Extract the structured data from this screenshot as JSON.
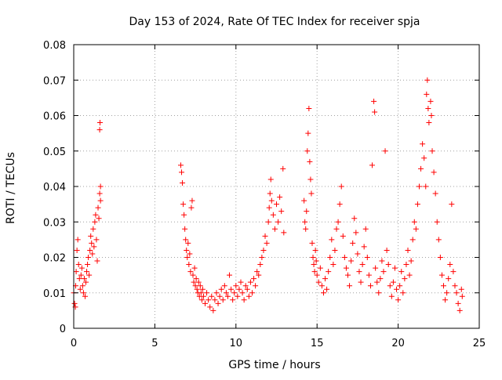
{
  "chart_data": {
    "type": "scatter",
    "title": "Day 153 of 2024, Rate Of TEC Index for receiver spja",
    "xlabel": "GPS time / hours",
    "ylabel": "ROTI / TECUs",
    "xlim": [
      0,
      25
    ],
    "ylim": [
      0,
      0.08
    ],
    "grid": true,
    "marker": "+",
    "color": "#ff0000",
    "x_ticks": [
      {
        "value": 0,
        "label": "0"
      },
      {
        "value": 5,
        "label": "5"
      },
      {
        "value": 10,
        "label": "10"
      },
      {
        "value": 15,
        "label": "15"
      },
      {
        "value": 20,
        "label": "20"
      },
      {
        "value": 25,
        "label": "25"
      }
    ],
    "y_ticks": [
      {
        "value": 0,
        "label": "0"
      },
      {
        "value": 0.01,
        "label": "0.01"
      },
      {
        "value": 0.02,
        "label": "0.02"
      },
      {
        "value": 0.03,
        "label": "0.03"
      },
      {
        "value": 0.04,
        "label": "0.04"
      },
      {
        "value": 0.05,
        "label": "0.05"
      },
      {
        "value": 0.06,
        "label": "0.06"
      },
      {
        "value": 0.07,
        "label": "0.07"
      },
      {
        "value": 0.08,
        "label": "0.08"
      }
    ],
    "series": [
      {
        "name": "ROTI",
        "points": [
          [
            0.0,
            0.01
          ],
          [
            0.05,
            0.007
          ],
          [
            0.1,
            0.006
          ],
          [
            0.12,
            0.012
          ],
          [
            0.15,
            0.016
          ],
          [
            0.2,
            0.022
          ],
          [
            0.25,
            0.025
          ],
          [
            0.3,
            0.018
          ],
          [
            0.35,
            0.014
          ],
          [
            0.4,
            0.011
          ],
          [
            0.45,
            0.015
          ],
          [
            0.5,
            0.017
          ],
          [
            0.55,
            0.012
          ],
          [
            0.6,
            0.01
          ],
          [
            0.65,
            0.014
          ],
          [
            0.7,
            0.009
          ],
          [
            0.75,
            0.013
          ],
          [
            0.8,
            0.016
          ],
          [
            0.85,
            0.018
          ],
          [
            0.9,
            0.02
          ],
          [
            0.95,
            0.015
          ],
          [
            1.0,
            0.022
          ],
          [
            1.05,
            0.026
          ],
          [
            1.1,
            0.024
          ],
          [
            1.15,
            0.021
          ],
          [
            1.2,
            0.028
          ],
          [
            1.25,
            0.023
          ],
          [
            1.3,
            0.03
          ],
          [
            1.35,
            0.032
          ],
          [
            1.4,
            0.025
          ],
          [
            1.45,
            0.019
          ],
          [
            1.5,
            0.034
          ],
          [
            1.55,
            0.031
          ],
          [
            1.6,
            0.038
          ],
          [
            1.6,
            0.056
          ],
          [
            1.62,
            0.058
          ],
          [
            1.65,
            0.04
          ],
          [
            1.65,
            0.036
          ],
          [
            6.6,
            0.046
          ],
          [
            6.65,
            0.044
          ],
          [
            6.7,
            0.041
          ],
          [
            6.75,
            0.035
          ],
          [
            6.8,
            0.032
          ],
          [
            6.85,
            0.028
          ],
          [
            6.9,
            0.025
          ],
          [
            6.95,
            0.022
          ],
          [
            7.0,
            0.02
          ],
          [
            7.05,
            0.024
          ],
          [
            7.1,
            0.018
          ],
          [
            7.15,
            0.021
          ],
          [
            7.2,
            0.016
          ],
          [
            7.25,
            0.034
          ],
          [
            7.3,
            0.036
          ],
          [
            7.35,
            0.015
          ],
          [
            7.4,
            0.013
          ],
          [
            7.45,
            0.017
          ],
          [
            7.5,
            0.012
          ],
          [
            7.55,
            0.014
          ],
          [
            7.6,
            0.011
          ],
          [
            7.65,
            0.01
          ],
          [
            7.7,
            0.013
          ],
          [
            7.75,
            0.009
          ],
          [
            7.8,
            0.012
          ],
          [
            7.85,
            0.01
          ],
          [
            7.9,
            0.008
          ],
          [
            7.95,
            0.011
          ],
          [
            8.0,
            0.009
          ],
          [
            8.1,
            0.007
          ],
          [
            8.2,
            0.01
          ],
          [
            8.3,
            0.008
          ],
          [
            8.4,
            0.006
          ],
          [
            8.5,
            0.009
          ],
          [
            8.6,
            0.005
          ],
          [
            8.7,
            0.008
          ],
          [
            8.8,
            0.01
          ],
          [
            8.9,
            0.007
          ],
          [
            9.0,
            0.009
          ],
          [
            9.1,
            0.011
          ],
          [
            9.2,
            0.008
          ],
          [
            9.3,
            0.012
          ],
          [
            9.4,
            0.01
          ],
          [
            9.5,
            0.009
          ],
          [
            9.6,
            0.015
          ],
          [
            9.7,
            0.011
          ],
          [
            9.8,
            0.008
          ],
          [
            9.9,
            0.01
          ],
          [
            10.0,
            0.012
          ],
          [
            10.1,
            0.009
          ],
          [
            10.2,
            0.011
          ],
          [
            10.3,
            0.013
          ],
          [
            10.4,
            0.01
          ],
          [
            10.5,
            0.008
          ],
          [
            10.6,
            0.012
          ],
          [
            10.7,
            0.011
          ],
          [
            10.8,
            0.009
          ],
          [
            10.9,
            0.013
          ],
          [
            11.0,
            0.01
          ],
          [
            11.1,
            0.014
          ],
          [
            11.2,
            0.012
          ],
          [
            11.3,
            0.016
          ],
          [
            11.4,
            0.015
          ],
          [
            11.5,
            0.018
          ],
          [
            11.6,
            0.02
          ],
          [
            11.7,
            0.022
          ],
          [
            11.8,
            0.026
          ],
          [
            11.9,
            0.024
          ],
          [
            12.0,
            0.03
          ],
          [
            12.05,
            0.034
          ],
          [
            12.1,
            0.038
          ],
          [
            12.15,
            0.042
          ],
          [
            12.2,
            0.036
          ],
          [
            12.3,
            0.032
          ],
          [
            12.4,
            0.028
          ],
          [
            12.5,
            0.035
          ],
          [
            12.6,
            0.03
          ],
          [
            12.7,
            0.037
          ],
          [
            12.8,
            0.033
          ],
          [
            12.9,
            0.045
          ],
          [
            12.95,
            0.027
          ],
          [
            14.2,
            0.036
          ],
          [
            14.25,
            0.03
          ],
          [
            14.3,
            0.028
          ],
          [
            14.35,
            0.033
          ],
          [
            14.4,
            0.05
          ],
          [
            14.45,
            0.055
          ],
          [
            14.5,
            0.062
          ],
          [
            14.55,
            0.047
          ],
          [
            14.6,
            0.042
          ],
          [
            14.65,
            0.038
          ],
          [
            14.7,
            0.024
          ],
          [
            14.75,
            0.02
          ],
          [
            14.8,
            0.018
          ],
          [
            14.85,
            0.016
          ],
          [
            14.9,
            0.022
          ],
          [
            14.95,
            0.019
          ],
          [
            15.0,
            0.015
          ],
          [
            15.1,
            0.013
          ],
          [
            15.2,
            0.017
          ],
          [
            15.3,
            0.012
          ],
          [
            15.4,
            0.01
          ],
          [
            15.5,
            0.014
          ],
          [
            15.6,
            0.011
          ],
          [
            15.7,
            0.016
          ],
          [
            15.8,
            0.02
          ],
          [
            15.9,
            0.025
          ],
          [
            16.0,
            0.018
          ],
          [
            16.1,
            0.022
          ],
          [
            16.2,
            0.028
          ],
          [
            16.3,
            0.03
          ],
          [
            16.4,
            0.035
          ],
          [
            16.5,
            0.04
          ],
          [
            16.6,
            0.026
          ],
          [
            16.7,
            0.02
          ],
          [
            16.8,
            0.017
          ],
          [
            16.9,
            0.015
          ],
          [
            17.0,
            0.012
          ],
          [
            17.1,
            0.019
          ],
          [
            17.2,
            0.024
          ],
          [
            17.3,
            0.031
          ],
          [
            17.4,
            0.027
          ],
          [
            17.5,
            0.021
          ],
          [
            17.6,
            0.016
          ],
          [
            17.7,
            0.013
          ],
          [
            17.8,
            0.018
          ],
          [
            17.9,
            0.023
          ],
          [
            18.0,
            0.028
          ],
          [
            18.1,
            0.02
          ],
          [
            18.2,
            0.015
          ],
          [
            18.3,
            0.012
          ],
          [
            18.4,
            0.046
          ],
          [
            18.5,
            0.064
          ],
          [
            18.55,
            0.061
          ],
          [
            18.6,
            0.017
          ],
          [
            18.7,
            0.013
          ],
          [
            18.8,
            0.01
          ],
          [
            18.9,
            0.014
          ],
          [
            19.0,
            0.019
          ],
          [
            19.1,
            0.016
          ],
          [
            19.2,
            0.05
          ],
          [
            19.3,
            0.022
          ],
          [
            19.4,
            0.018
          ],
          [
            19.5,
            0.012
          ],
          [
            19.6,
            0.009
          ],
          [
            19.7,
            0.013
          ],
          [
            19.8,
            0.017
          ],
          [
            19.9,
            0.011
          ],
          [
            20.0,
            0.008
          ],
          [
            20.1,
            0.012
          ],
          [
            20.2,
            0.016
          ],
          [
            20.3,
            0.01
          ],
          [
            20.4,
            0.014
          ],
          [
            20.5,
            0.018
          ],
          [
            20.6,
            0.022
          ],
          [
            20.7,
            0.015
          ],
          [
            20.8,
            0.019
          ],
          [
            20.9,
            0.025
          ],
          [
            21.0,
            0.03
          ],
          [
            21.1,
            0.028
          ],
          [
            21.2,
            0.035
          ],
          [
            21.3,
            0.04
          ],
          [
            21.4,
            0.045
          ],
          [
            21.5,
            0.052
          ],
          [
            21.6,
            0.048
          ],
          [
            21.7,
            0.04
          ],
          [
            21.75,
            0.066
          ],
          [
            21.8,
            0.07
          ],
          [
            21.85,
            0.062
          ],
          [
            21.9,
            0.058
          ],
          [
            22.0,
            0.064
          ],
          [
            22.05,
            0.06
          ],
          [
            22.1,
            0.05
          ],
          [
            22.2,
            0.044
          ],
          [
            22.3,
            0.038
          ],
          [
            22.4,
            0.03
          ],
          [
            22.5,
            0.025
          ],
          [
            22.6,
            0.02
          ],
          [
            22.7,
            0.015
          ],
          [
            22.8,
            0.012
          ],
          [
            22.9,
            0.008
          ],
          [
            23.0,
            0.01
          ],
          [
            23.1,
            0.014
          ],
          [
            23.2,
            0.018
          ],
          [
            23.3,
            0.035
          ],
          [
            23.4,
            0.016
          ],
          [
            23.5,
            0.012
          ],
          [
            23.6,
            0.01
          ],
          [
            23.7,
            0.007
          ],
          [
            23.8,
            0.005
          ],
          [
            23.9,
            0.011
          ],
          [
            23.95,
            0.009
          ]
        ]
      }
    ]
  }
}
